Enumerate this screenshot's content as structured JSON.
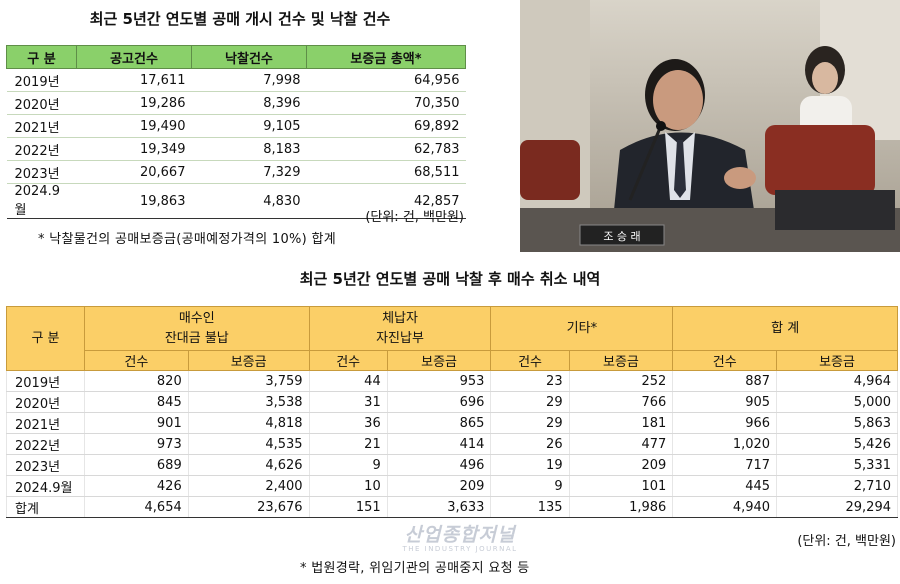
{
  "table1": {
    "title": "최근 5년간 연도별 공매 개시 건수 및 낙찰 건수",
    "headers": [
      "구 분",
      "공고건수",
      "낙찰건수",
      "보증금 총액*"
    ],
    "rows": [
      [
        "2019년",
        "17,611",
        "7,998",
        "64,956"
      ],
      [
        "2020년",
        "19,286",
        "8,396",
        "70,350"
      ],
      [
        "2021년",
        "19,490",
        "9,105",
        "69,892"
      ],
      [
        "2022년",
        "19,349",
        "8,183",
        "62,783"
      ],
      [
        "2023년",
        "20,667",
        "7,329",
        "68,511"
      ],
      [
        "2024.9월",
        "19,863",
        "4,830",
        "42,857"
      ]
    ],
    "unit": "(단위: 건, 백만원)",
    "note": "* 낙찰물건의 공매보증금(공매예정가격의 10%) 합계"
  },
  "photo": {
    "nameplate": "조 승 래"
  },
  "table2": {
    "title": "최근 5년간 연도별 공매 낙찰 후 매수 취소 내역",
    "corner": "구 분",
    "groups": [
      {
        "line1": "매수인",
        "line2": "잔대금 불납"
      },
      {
        "line1": "체납자",
        "line2": "자진납부"
      },
      {
        "line1": "기타*",
        "line2": ""
      },
      {
        "line1": "합 계",
        "line2": ""
      }
    ],
    "subheaders": [
      "건수",
      "보증금",
      "건수",
      "보증금",
      "건수",
      "보증금",
      "건수",
      "보증금"
    ],
    "rows": [
      [
        "2019년",
        "820",
        "3,759",
        "44",
        "953",
        "23",
        "252",
        "887",
        "4,964"
      ],
      [
        "2020년",
        "845",
        "3,538",
        "31",
        "696",
        "29",
        "766",
        "905",
        "5,000"
      ],
      [
        "2021년",
        "901",
        "4,818",
        "36",
        "865",
        "29",
        "181",
        "966",
        "5,863"
      ],
      [
        "2022년",
        "973",
        "4,535",
        "21",
        "414",
        "26",
        "477",
        "1,020",
        "5,426"
      ],
      [
        "2023년",
        "689",
        "4,626",
        "9",
        "496",
        "19",
        "209",
        "717",
        "5,331"
      ],
      [
        "2024.9월",
        "426",
        "2,400",
        "10",
        "209",
        "9",
        "101",
        "445",
        "2,710"
      ],
      [
        "합계",
        "4,654",
        "23,676",
        "151",
        "3,633",
        "135",
        "1,986",
        "4,940",
        "29,294"
      ]
    ],
    "unit": "(단위: 건, 백만원)",
    "note": "* 법원경락, 위임기관의 공매중지 요청 등"
  },
  "watermark": {
    "line1": "산업종합저널",
    "line2": "THE INDUSTRY JOURNAL"
  }
}
